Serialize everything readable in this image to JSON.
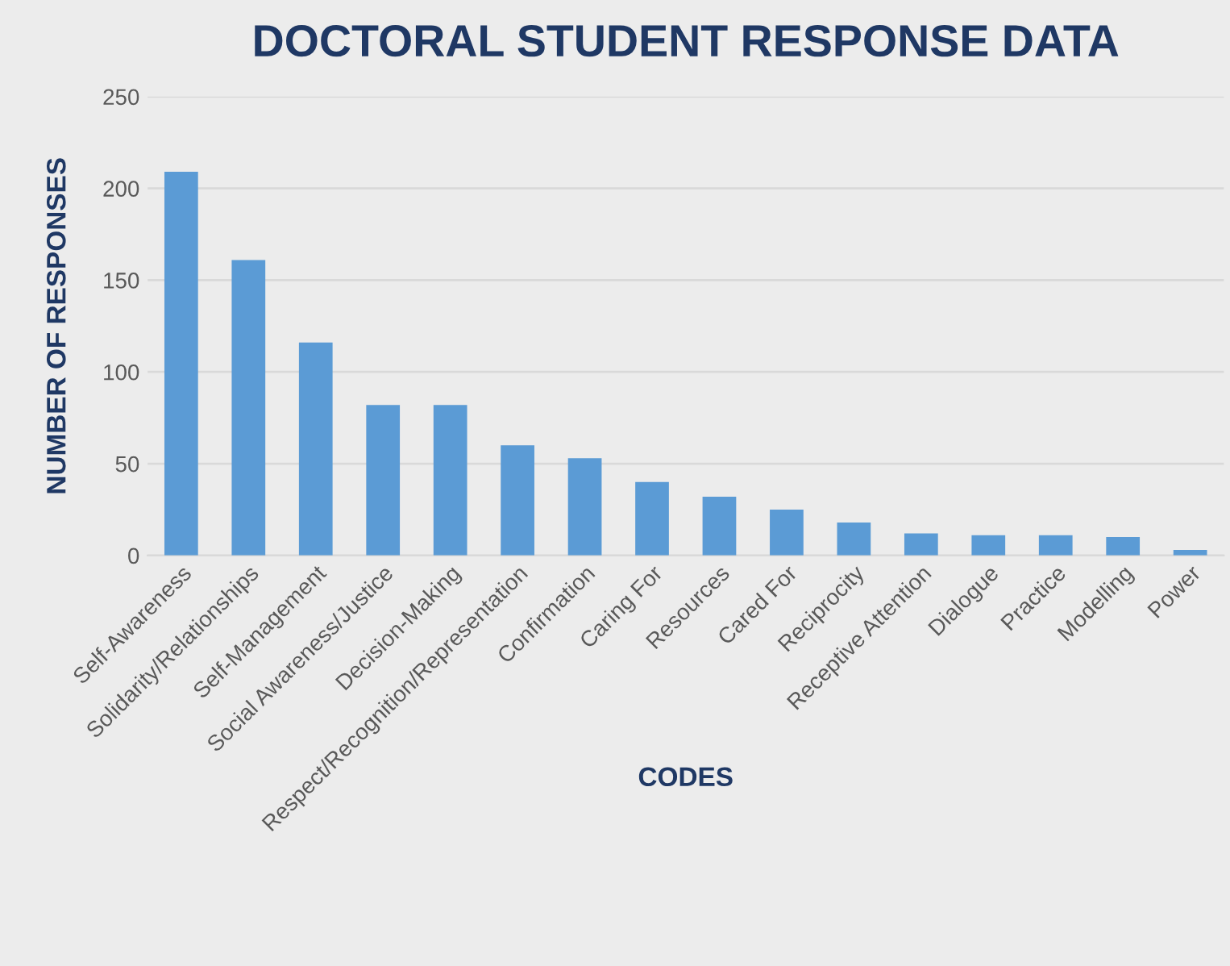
{
  "chart_data": {
    "type": "bar",
    "title": "DOCTORAL STUDENT RESPONSE DATA",
    "xlabel": "CODES",
    "ylabel": "NUMBER OF RESPONSES",
    "categories": [
      "Self-Awareness",
      "Solidarity/Relationships",
      "Self-Management",
      "Social Awareness/Justice",
      "Decision-Making",
      "Respect/Recognition/Representation",
      "Confirmation",
      "Caring For",
      "Resources",
      "Cared For",
      "Reciprocity",
      "Receptive Attention",
      "Dialogue",
      "Practice",
      "Modelling",
      "Power"
    ],
    "values": [
      209,
      161,
      116,
      82,
      82,
      60,
      53,
      40,
      32,
      25,
      18,
      12,
      11,
      11,
      10,
      3
    ],
    "color": "#5b9bd5",
    "ylim": [
      0,
      250
    ],
    "yticks": [
      0,
      50,
      100,
      150,
      200,
      250
    ],
    "grid": "y"
  }
}
